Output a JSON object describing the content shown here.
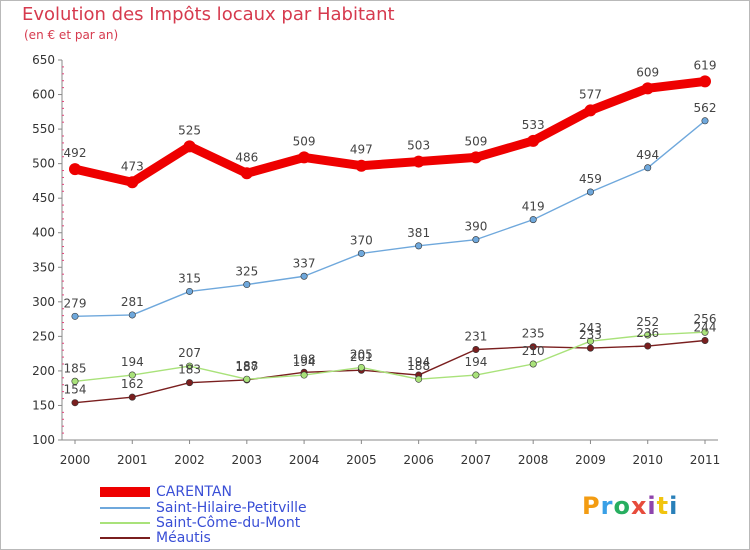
{
  "title": "Evolution des Impôts locaux par Habitant",
  "subtitle": "(en € et par an)",
  "logo_text": "Proxiti",
  "chart_data": {
    "type": "line",
    "title": "Evolution des Impôts locaux par Habitant",
    "subtitle": "(en € et par an)",
    "xlabel": "",
    "ylabel": "",
    "x": [
      2000,
      2001,
      2002,
      2003,
      2004,
      2005,
      2006,
      2007,
      2008,
      2009,
      2010,
      2011
    ],
    "ylim": [
      100,
      650
    ],
    "yticks": [
      100,
      150,
      200,
      250,
      300,
      350,
      400,
      450,
      500,
      550,
      600,
      650
    ],
    "grid": false,
    "legend_position": "bottom-left",
    "series": [
      {
        "name": "CARENTAN",
        "color": "#ee0000",
        "values": [
          492,
          473,
          525,
          486,
          509,
          497,
          503,
          509,
          533,
          577,
          609,
          619
        ]
      },
      {
        "name": "Saint-Hilaire-Petitville",
        "color": "#6fa8dc",
        "values": [
          279,
          281,
          315,
          325,
          337,
          370,
          381,
          390,
          419,
          459,
          494,
          562
        ]
      },
      {
        "name": "Saint-Côme-du-Mont",
        "color": "#a9e27a",
        "values": [
          185,
          194,
          207,
          188,
          194,
          205,
          188,
          194,
          210,
          243,
          252,
          256
        ]
      },
      {
        "name": "Méautis",
        "color": "#7a1f1f",
        "values": [
          154,
          162,
          183,
          187,
          198,
          201,
          194,
          231,
          235,
          233,
          236,
          244
        ]
      }
    ]
  }
}
